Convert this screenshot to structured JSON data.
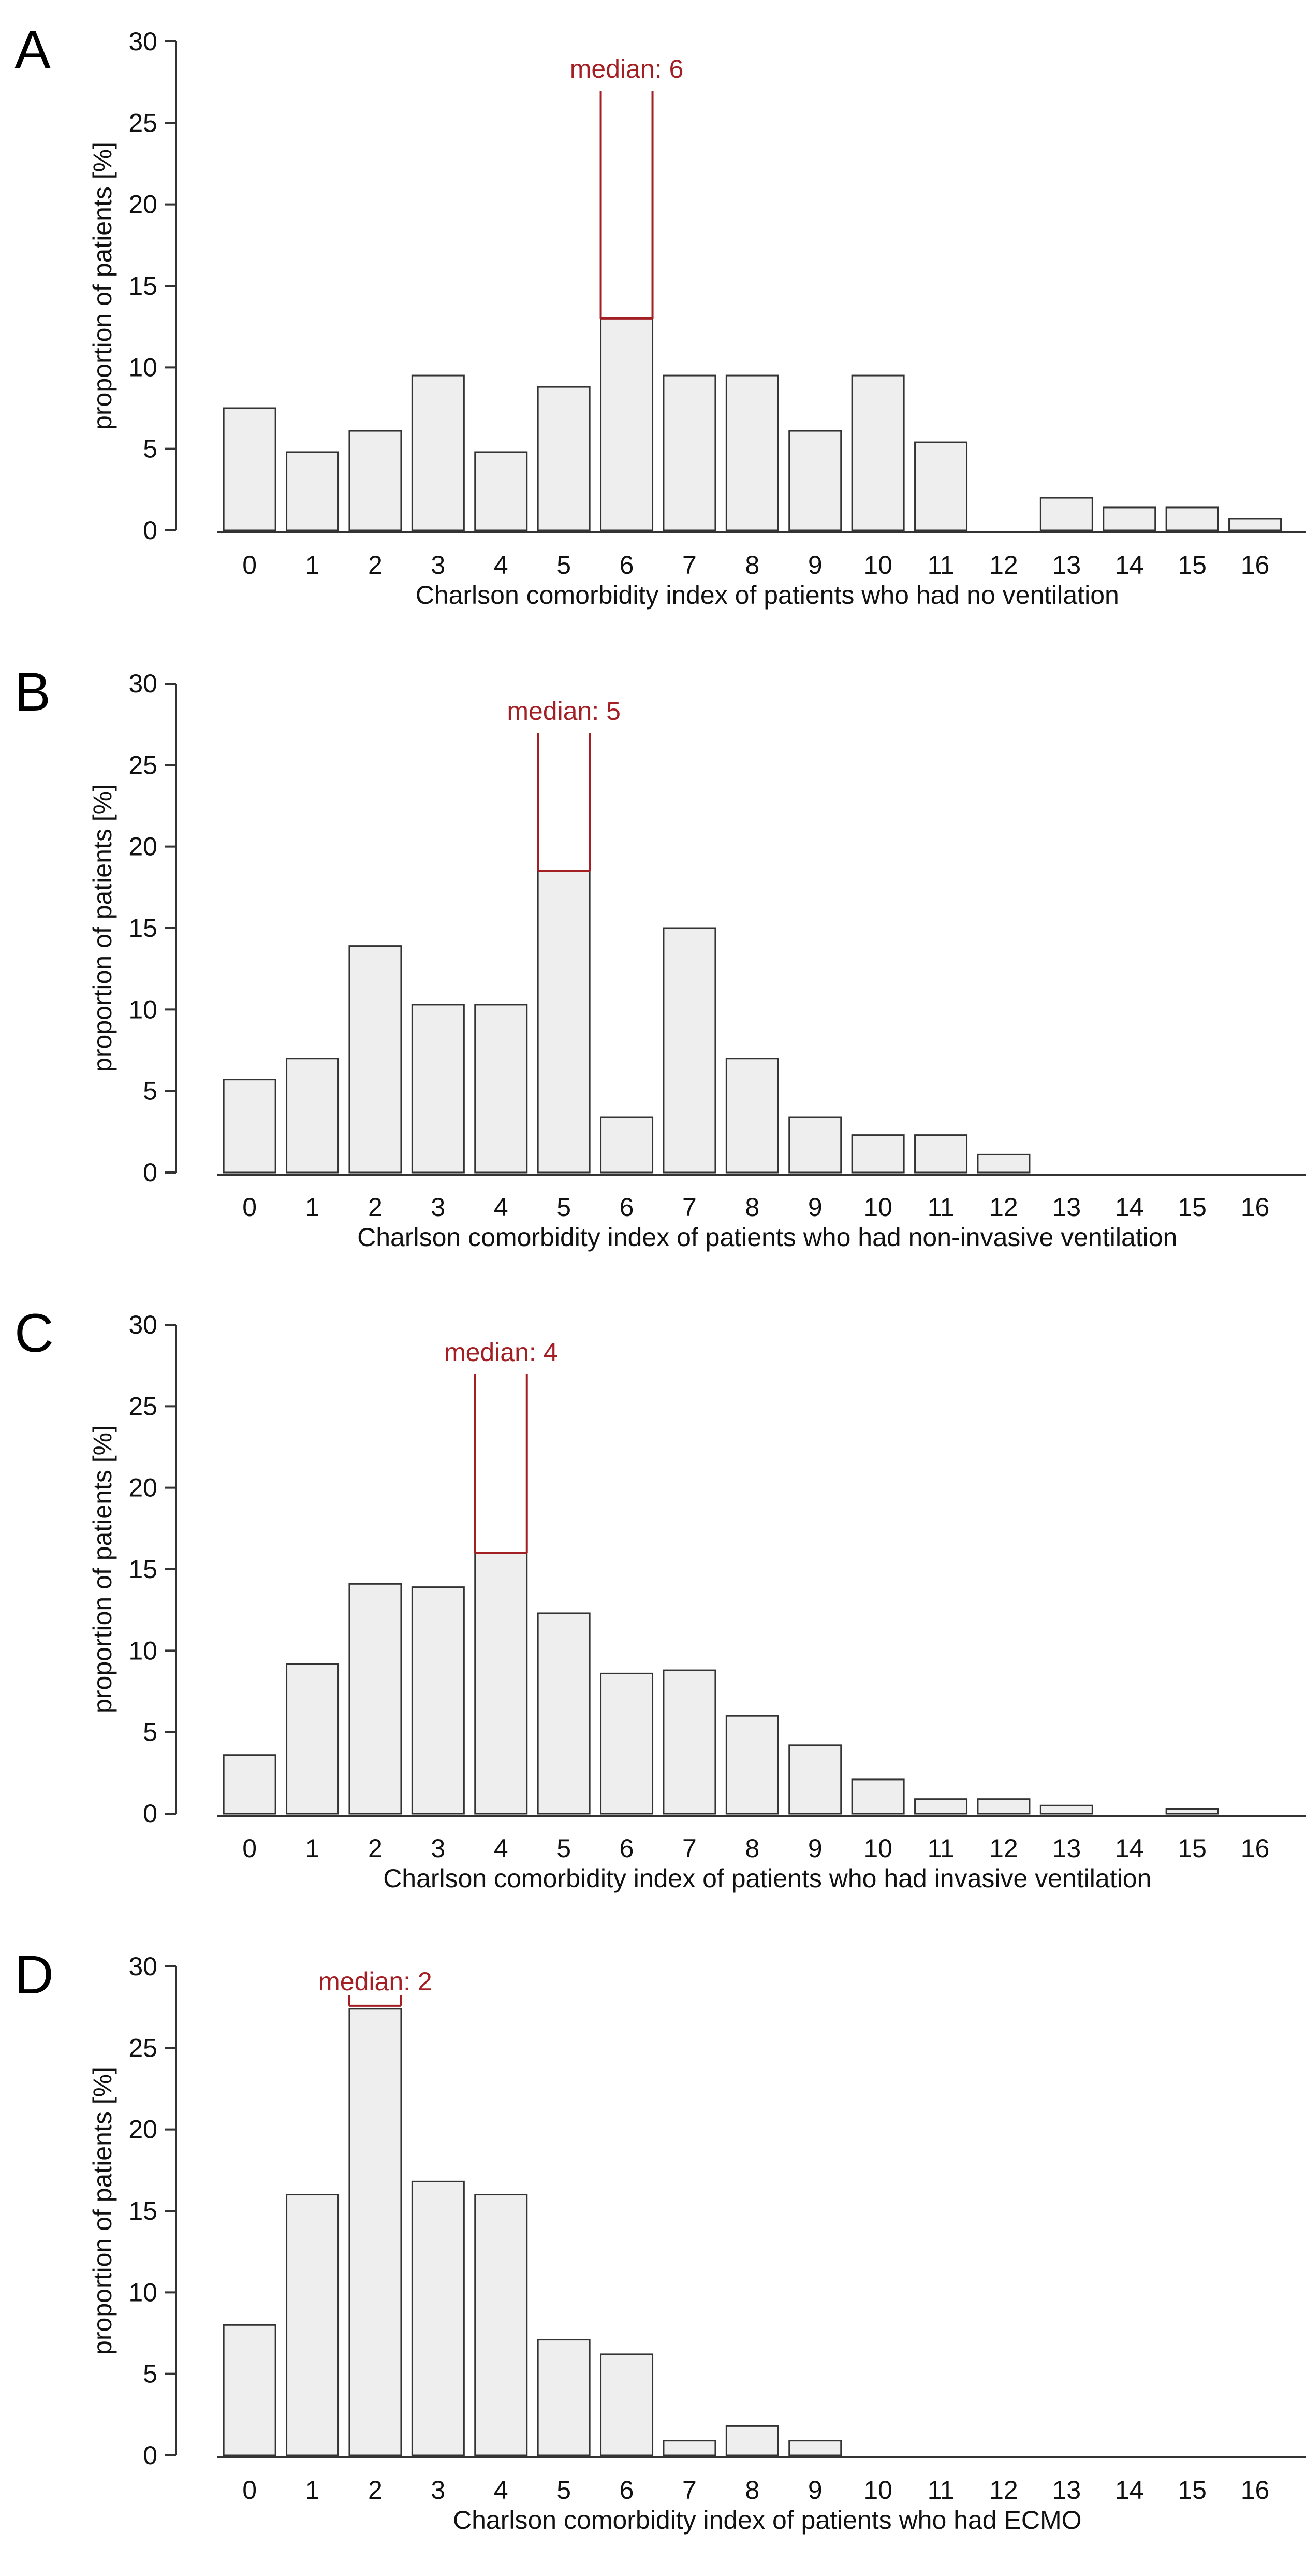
{
  "figure": {
    "panels": [
      {
        "letter": "A",
        "median_label": "median: 6",
        "xlabel": "Charlson comorbidity index of patients who had no ventilation",
        "ylabel": "proportion of patients [%]"
      },
      {
        "letter": "B",
        "median_label": "median: 5",
        "xlabel": "Charlson comorbidity index of patients who had non-invasive ventilation",
        "ylabel": "proportion of patients [%]"
      },
      {
        "letter": "C",
        "median_label": "median: 4",
        "xlabel": "Charlson comorbidity index of patients who had invasive ventilation",
        "ylabel": "proportion of patients [%]"
      },
      {
        "letter": "D",
        "median_label": "median: 2",
        "xlabel": "Charlson comorbidity index of patients who had ECMO",
        "ylabel": "proportion of patients [%]"
      }
    ]
  },
  "colors": {
    "bar_fill": "#eeeeee",
    "bar_stroke": "#333333",
    "axis": "#333333",
    "median": "#a31f24",
    "text": "#111111"
  },
  "chart_data": [
    {
      "type": "bar",
      "panel": "A",
      "categories": [
        "0",
        "1",
        "2",
        "3",
        "4",
        "5",
        "6",
        "7",
        "8",
        "9",
        "10",
        "11",
        "12",
        "13",
        "14",
        "15",
        "16"
      ],
      "values": [
        7.5,
        4.8,
        6.1,
        9.5,
        4.8,
        8.8,
        13.0,
        9.5,
        9.5,
        6.1,
        9.5,
        5.4,
        0,
        2.0,
        1.4,
        1.4,
        0.7
      ],
      "median": 6,
      "median_label": "median: 6",
      "xlabel": "Charlson comorbidity index of patients who had no ventilation",
      "ylabel": "proportion of patients [%]",
      "ylim": [
        0,
        30
      ],
      "yticks": [
        0,
        5,
        10,
        15,
        20,
        25,
        30
      ],
      "grid": false
    },
    {
      "type": "bar",
      "panel": "B",
      "categories": [
        "0",
        "1",
        "2",
        "3",
        "4",
        "5",
        "6",
        "7",
        "8",
        "9",
        "10",
        "11",
        "12",
        "13",
        "14",
        "15",
        "16"
      ],
      "values": [
        5.7,
        7.0,
        13.9,
        10.3,
        10.3,
        18.5,
        3.4,
        15.0,
        7.0,
        3.4,
        2.3,
        2.3,
        1.1,
        0,
        0,
        0,
        0
      ],
      "median": 5,
      "median_label": "median: 5",
      "xlabel": "Charlson comorbidity index of patients who had non-invasive ventilation",
      "ylabel": "proportion of patients [%]",
      "ylim": [
        0,
        30
      ],
      "yticks": [
        0,
        5,
        10,
        15,
        20,
        25,
        30
      ],
      "grid": false
    },
    {
      "type": "bar",
      "panel": "C",
      "categories": [
        "0",
        "1",
        "2",
        "3",
        "4",
        "5",
        "6",
        "7",
        "8",
        "9",
        "10",
        "11",
        "12",
        "13",
        "14",
        "15",
        "16"
      ],
      "values": [
        3.6,
        9.2,
        14.1,
        13.9,
        16.0,
        12.3,
        8.6,
        8.8,
        6.0,
        4.2,
        2.1,
        0.9,
        0.9,
        0.5,
        0,
        0.3,
        0
      ],
      "median": 4,
      "median_label": "median: 4",
      "xlabel": "Charlson comorbidity index of patients who had invasive ventilation",
      "ylabel": "proportion of patients [%]",
      "ylim": [
        0,
        30
      ],
      "yticks": [
        0,
        5,
        10,
        15,
        20,
        25,
        30
      ],
      "grid": false
    },
    {
      "type": "bar",
      "panel": "D",
      "categories": [
        "0",
        "1",
        "2",
        "3",
        "4",
        "5",
        "6",
        "7",
        "8",
        "9",
        "10",
        "11",
        "12",
        "13",
        "14",
        "15",
        "16"
      ],
      "values": [
        8.0,
        16.0,
        27.4,
        16.8,
        16.0,
        7.1,
        6.2,
        0.9,
        1.8,
        0.9,
        0,
        0,
        0,
        0,
        0,
        0,
        0
      ],
      "median": 2,
      "median_label": "median: 2",
      "xlabel": "Charlson comorbidity index of patients who had ECMO",
      "ylabel": "proportion of patients [%]",
      "ylim": [
        0,
        30
      ],
      "yticks": [
        0,
        5,
        10,
        15,
        20,
        25,
        30
      ],
      "grid": false
    }
  ]
}
